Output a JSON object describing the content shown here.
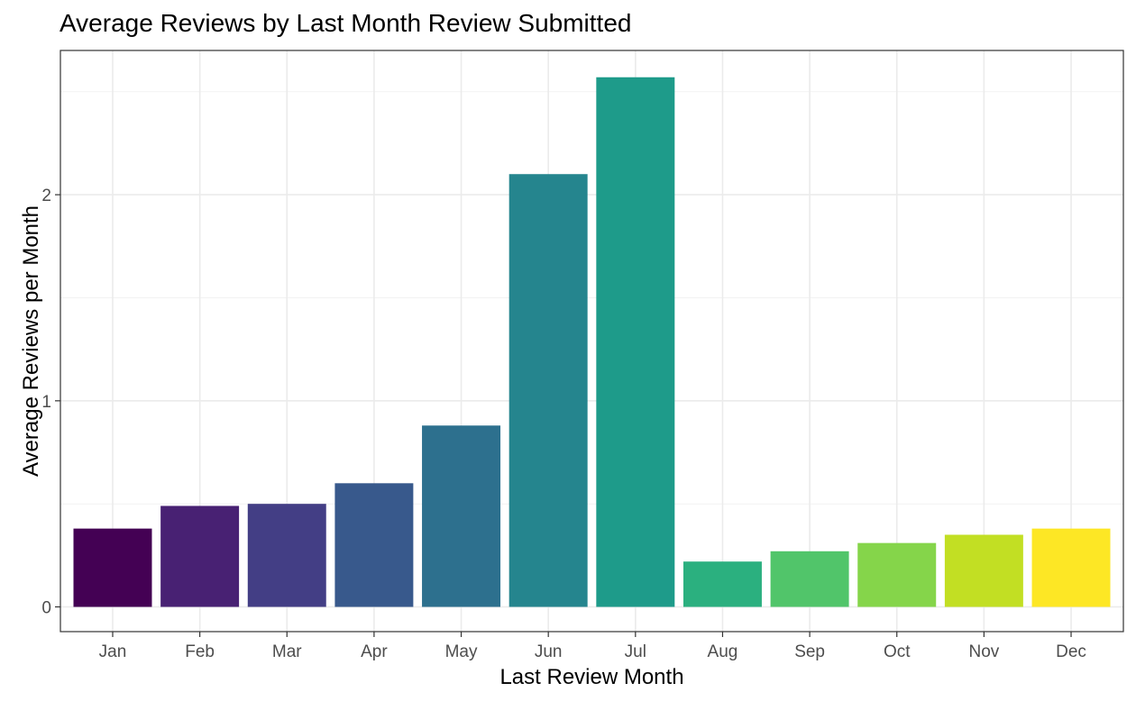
{
  "chart_data": {
    "type": "bar",
    "title": "Average Reviews by Last Month Review Submitted",
    "xlabel": "Last Review Month",
    "ylabel": "Average Reviews per Month",
    "categories": [
      "Jan",
      "Feb",
      "Mar",
      "Apr",
      "May",
      "Jun",
      "Jul",
      "Aug",
      "Sep",
      "Oct",
      "Nov",
      "Dec"
    ],
    "values": [
      0.38,
      0.49,
      0.5,
      0.6,
      0.88,
      2.1,
      2.57,
      0.22,
      0.27,
      0.31,
      0.35,
      0.38
    ],
    "colors": [
      "#440154",
      "#482173",
      "#433E85",
      "#38598C",
      "#2D708E",
      "#25858E",
      "#1E9B8A",
      "#2BB07F",
      "#51C56A",
      "#85D54A",
      "#C2DF23",
      "#FDE725"
    ],
    "ylim": [
      -0.12,
      2.7
    ],
    "yticks": [
      0,
      1,
      2
    ],
    "ytick_labels": [
      "0",
      "1",
      "2"
    ],
    "grid": true,
    "legend": "none"
  }
}
